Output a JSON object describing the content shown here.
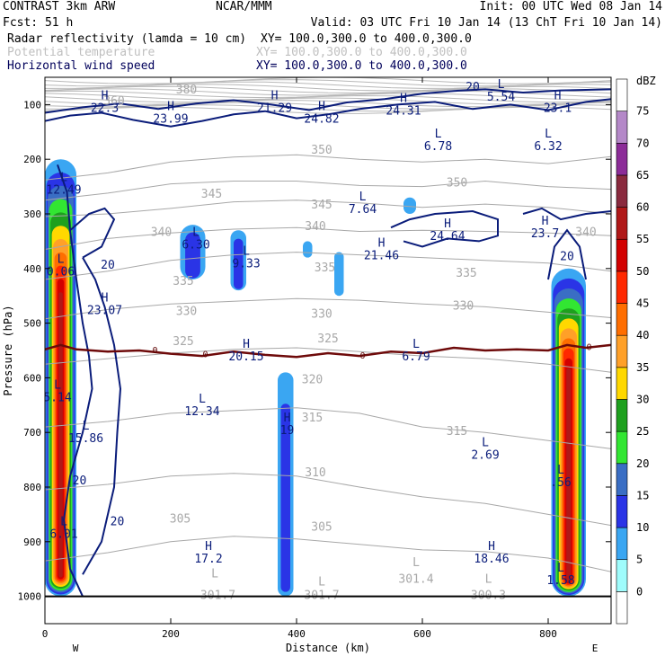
{
  "header": {
    "line1_left": "CONTRAST  3km ARW",
    "line1_mid": "NCAR/MMM",
    "line1_right": "Init: 00 UTC Wed 08 Jan 14",
    "line2_left": "Fcst:   51 h",
    "line2_right": "Valid: 03 UTC Fri 10 Jan 14 (13 ChT Fri 10 Jan 14)",
    "field1_name": "Radar reflectivity (lamda = 10 cm)",
    "field1_xy": "XY= 100.0,300.0 to 400.0,300.0",
    "field2_name": "Potential temperature",
    "field2_xy": "XY= 100.0,300.0 to 400.0,300.0",
    "field3_name": "Horizontal wind speed",
    "field3_xy": "XY= 100.0,300.0 to 400.0,300.0"
  },
  "chart_data": {
    "type": "cross-section",
    "xlabel": "Distance (km)",
    "ylabel": "Pressure (hPa)",
    "xlim": [
      0,
      900
    ],
    "ylim": [
      1050,
      50
    ],
    "x_ticks": [
      0,
      200,
      400,
      600,
      800
    ],
    "y_ticks": [
      100,
      200,
      300,
      400,
      500,
      600,
      700,
      800,
      900,
      1000
    ],
    "x_endpoint_labels": {
      "left": "W",
      "right": "E"
    },
    "colorbar": {
      "unit": "dBZ",
      "levels": [
        0,
        5,
        10,
        15,
        20,
        25,
        30,
        35,
        40,
        45,
        50,
        55,
        60,
        65,
        70,
        75
      ],
      "colors": [
        "#ffffff",
        "#9ffcfc",
        "#3aa6f2",
        "#2a34e6",
        "#3a6ec4",
        "#32e632",
        "#1ea01e",
        "#ffd800",
        "#ffa028",
        "#ff6e00",
        "#ff2800",
        "#d20000",
        "#b01818",
        "#8a2a3e",
        "#8c2c98",
        "#b488c8",
        "#ffffff"
      ]
    },
    "theta_contours": [
      {
        "value": 350,
        "label": "350",
        "points": [
          [
            0,
            238
          ],
          [
            100,
            225
          ],
          [
            200,
            205
          ],
          [
            300,
            196
          ],
          [
            400,
            192
          ],
          [
            500,
            200
          ],
          [
            600,
            205
          ],
          [
            700,
            200
          ],
          [
            800,
            208
          ],
          [
            900,
            195
          ]
        ]
      },
      {
        "value": 345,
        "label": "345",
        "points": [
          [
            0,
            275
          ],
          [
            100,
            262
          ],
          [
            200,
            245
          ],
          [
            300,
            240
          ],
          [
            400,
            240
          ],
          [
            500,
            248
          ],
          [
            600,
            250
          ],
          [
            700,
            240
          ],
          [
            800,
            250
          ],
          [
            900,
            255
          ]
        ]
      },
      {
        "value": 340,
        "label": "340",
        "points": [
          [
            0,
            305
          ],
          [
            100,
            300
          ],
          [
            200,
            290
          ],
          [
            300,
            278
          ],
          [
            400,
            275
          ],
          [
            500,
            280
          ],
          [
            600,
            288
          ],
          [
            700,
            282
          ],
          [
            800,
            288
          ],
          [
            900,
            300
          ]
        ]
      },
      {
        "value": 335,
        "label": "335",
        "points": [
          [
            0,
            365
          ],
          [
            100,
            345
          ],
          [
            200,
            335
          ],
          [
            300,
            328
          ],
          [
            400,
            325
          ],
          [
            500,
            332
          ],
          [
            600,
            330
          ],
          [
            700,
            332
          ],
          [
            800,
            335
          ],
          [
            900,
            340
          ]
        ]
      },
      {
        "value": 330,
        "label": "330",
        "points": [
          [
            0,
            420
          ],
          [
            100,
            405
          ],
          [
            200,
            385
          ],
          [
            300,
            375
          ],
          [
            400,
            370
          ],
          [
            500,
            375
          ],
          [
            600,
            380
          ],
          [
            700,
            385
          ],
          [
            800,
            390
          ],
          [
            900,
            405
          ]
        ]
      },
      {
        "value": 325,
        "label": "325",
        "points": [
          [
            0,
            492
          ],
          [
            100,
            475
          ],
          [
            200,
            465
          ],
          [
            300,
            460
          ],
          [
            400,
            455
          ],
          [
            500,
            458
          ],
          [
            600,
            465
          ],
          [
            700,
            470
          ],
          [
            800,
            480
          ],
          [
            900,
            490
          ]
        ]
      },
      {
        "value": 320,
        "label": "320",
        "points": [
          [
            0,
            575
          ],
          [
            100,
            565
          ],
          [
            200,
            555
          ],
          [
            300,
            548
          ],
          [
            400,
            545
          ],
          [
            500,
            552
          ],
          [
            600,
            560
          ],
          [
            700,
            565
          ],
          [
            800,
            575
          ],
          [
            900,
            590
          ]
        ]
      },
      {
        "value": 315,
        "label": "315",
        "points": [
          [
            0,
            690
          ],
          [
            100,
            680
          ],
          [
            200,
            665
          ],
          [
            300,
            660
          ],
          [
            400,
            655
          ],
          [
            500,
            665
          ],
          [
            600,
            690
          ],
          [
            700,
            700
          ],
          [
            800,
            715
          ],
          [
            900,
            730
          ]
        ]
      },
      {
        "value": 310,
        "label": "310",
        "points": [
          [
            0,
            805
          ],
          [
            100,
            795
          ],
          [
            200,
            780
          ],
          [
            300,
            775
          ],
          [
            400,
            780
          ],
          [
            500,
            800
          ],
          [
            600,
            818
          ],
          [
            700,
            830
          ],
          [
            800,
            850
          ],
          [
            900,
            870
          ]
        ]
      },
      {
        "value": 305,
        "label": "305",
        "points": [
          [
            0,
            935
          ],
          [
            100,
            920
          ],
          [
            200,
            900
          ],
          [
            300,
            890
          ],
          [
            400,
            895
          ],
          [
            500,
            905
          ],
          [
            600,
            915
          ],
          [
            700,
            918
          ],
          [
            800,
            930
          ],
          [
            900,
            955
          ]
        ]
      }
    ],
    "theta_labels": [
      {
        "text": "380",
        "x": 225,
        "p": 80
      },
      {
        "text": "360",
        "x": 110,
        "p": 100
      },
      {
        "text": "350",
        "x": 440,
        "p": 190
      },
      {
        "text": "350",
        "x": 655,
        "p": 250
      },
      {
        "text": "345",
        "x": 265,
        "p": 270
      },
      {
        "text": "345",
        "x": 440,
        "p": 290
      },
      {
        "text": "340",
        "x": 185,
        "p": 340
      },
      {
        "text": "340",
        "x": 430,
        "p": 330
      },
      {
        "text": "340",
        "x": 860,
        "p": 340
      },
      {
        "text": "335",
        "x": 220,
        "p": 430
      },
      {
        "text": "335",
        "x": 445,
        "p": 405
      },
      {
        "text": "335",
        "x": 670,
        "p": 415
      },
      {
        "text": "330",
        "x": 225,
        "p": 485
      },
      {
        "text": "330",
        "x": 440,
        "p": 490
      },
      {
        "text": "330",
        "x": 665,
        "p": 475
      },
      {
        "text": "325",
        "x": 220,
        "p": 540
      },
      {
        "text": "325",
        "x": 450,
        "p": 535
      },
      {
        "text": "320",
        "x": 425,
        "p": 610
      },
      {
        "text": "315",
        "x": 425,
        "p": 680
      },
      {
        "text": "315",
        "x": 655,
        "p": 705
      },
      {
        "text": "310",
        "x": 430,
        "p": 780
      },
      {
        "text": "305",
        "x": 215,
        "p": 865
      },
      {
        "text": "305",
        "x": 440,
        "p": 880
      },
      {
        "text": "301.4",
        "x": 590,
        "p": 975
      },
      {
        "text": "301.7",
        "x": 275,
        "p": 1005
      },
      {
        "text": "301.7",
        "x": 440,
        "p": 1005
      },
      {
        "text": "300.3",
        "x": 705,
        "p": 1005
      }
    ],
    "theta_extrema": [
      {
        "text": "L",
        "x": 270,
        "p": 965
      },
      {
        "text": "L",
        "x": 440,
        "p": 980
      },
      {
        "text": "L",
        "x": 590,
        "p": 945
      },
      {
        "text": "L",
        "x": 705,
        "p": 975
      }
    ],
    "wind_speed_labels": [
      {
        "text": "20",
        "x": 680,
        "p": 75
      },
      {
        "text": "20",
        "x": 100,
        "p": 400
      },
      {
        "text": "20",
        "x": 55,
        "p": 795
      },
      {
        "text": "20",
        "x": 115,
        "p": 870
      },
      {
        "text": "20",
        "x": 830,
        "p": 385
      }
    ],
    "wind_speed_extrema": [
      {
        "type": "H",
        "value": "22.3",
        "x": 95,
        "p": 90
      },
      {
        "type": "H",
        "value": "23.99",
        "x": 200,
        "p": 110
      },
      {
        "type": "H",
        "value": "21.29",
        "x": 365,
        "p": 90
      },
      {
        "type": "H",
        "value": "24.82",
        "x": 440,
        "p": 110
      },
      {
        "type": "H",
        "value": "24.31",
        "x": 570,
        "p": 95
      },
      {
        "type": "L",
        "value": "5.54",
        "x": 725,
        "p": 70
      },
      {
        "type": "H",
        "value": "23.1",
        "x": 815,
        "p": 90
      },
      {
        "type": "L",
        "value": "6.78",
        "x": 625,
        "p": 160
      },
      {
        "type": "L",
        "value": "6.32",
        "x": 800,
        "p": 160
      },
      {
        "type": "L",
        "value": "12.49",
        "x": 30,
        "p": 240
      },
      {
        "type": "L",
        "value": "7.64",
        "x": 505,
        "p": 275
      },
      {
        "type": "L",
        "value": "6.30",
        "x": 240,
        "p": 340
      },
      {
        "type": "H",
        "value": "24.64",
        "x": 640,
        "p": 325
      },
      {
        "type": "H",
        "value": "23.7",
        "x": 795,
        "p": 320
      },
      {
        "type": "H",
        "value": "21.46",
        "x": 535,
        "p": 360
      },
      {
        "type": "L",
        "value": "9.33",
        "x": 320,
        "p": 375
      },
      {
        "type": "L",
        "value": "0.06",
        "x": 25,
        "p": 390
      },
      {
        "type": "H",
        "value": "23.07",
        "x": 95,
        "p": 460
      },
      {
        "type": "H",
        "value": "20.15",
        "x": 320,
        "p": 545
      },
      {
        "type": "L",
        "value": "6.79",
        "x": 590,
        "p": 545
      },
      {
        "type": "L",
        "value": "12.34",
        "x": 250,
        "p": 645
      },
      {
        "type": "L",
        "value": "5.14",
        "x": 20,
        "p": 620
      },
      {
        "type": "H",
        "value": "19",
        "x": 385,
        "p": 680
      },
      {
        "type": "L",
        "value": "15.86",
        "x": 65,
        "p": 695
      },
      {
        "type": "L",
        "value": "2.69",
        "x": 700,
        "p": 725
      },
      {
        "type": "L",
        "value": ".56",
        "x": 820,
        "p": 775
      },
      {
        "type": "L",
        "value": "6.01",
        "x": 30,
        "p": 870
      },
      {
        "type": "H",
        "value": "17.2",
        "x": 260,
        "p": 915
      },
      {
        "type": "H",
        "value": "18.46",
        "x": 710,
        "p": 915
      },
      {
        "type": "L",
        "value": "1.58",
        "x": 820,
        "p": 955
      }
    ],
    "freezing_level": {
      "label": "0",
      "points": [
        [
          0,
          548
        ],
        [
          25,
          540
        ],
        [
          50,
          548
        ],
        [
          100,
          552
        ],
        [
          150,
          550
        ],
        [
          200,
          556
        ],
        [
          250,
          560
        ],
        [
          300,
          552
        ],
        [
          350,
          558
        ],
        [
          400,
          562
        ],
        [
          450,
          555
        ],
        [
          500,
          560
        ],
        [
          550,
          552
        ],
        [
          600,
          555
        ],
        [
          650,
          545
        ],
        [
          700,
          550
        ],
        [
          750,
          548
        ],
        [
          800,
          550
        ],
        [
          830,
          540
        ],
        [
          860,
          545
        ],
        [
          900,
          540
        ]
      ]
    },
    "reflectivity_cells": [
      {
        "x0": 0,
        "x1": 50,
        "p_top": 200,
        "p_bot": 1000,
        "max_dbz": 55
      },
      {
        "x0": 805,
        "x1": 860,
        "p_top": 400,
        "p_bot": 1000,
        "max_dbz": 55
      },
      {
        "x0": 370,
        "x1": 395,
        "p_top": 590,
        "p_bot": 1000,
        "max_dbz": 12
      },
      {
        "x0": 215,
        "x1": 255,
        "p_top": 320,
        "p_bot": 420,
        "max_dbz": 10
      },
      {
        "x0": 295,
        "x1": 320,
        "p_top": 330,
        "p_bot": 440,
        "max_dbz": 10
      },
      {
        "x0": 410,
        "x1": 425,
        "p_top": 350,
        "p_bot": 380,
        "max_dbz": 7
      },
      {
        "x0": 460,
        "x1": 475,
        "p_top": 370,
        "p_bot": 450,
        "max_dbz": 7
      },
      {
        "x0": 570,
        "x1": 590,
        "p_top": 270,
        "p_bot": 300,
        "max_dbz": 7
      }
    ],
    "ground_pressure": 1000
  }
}
